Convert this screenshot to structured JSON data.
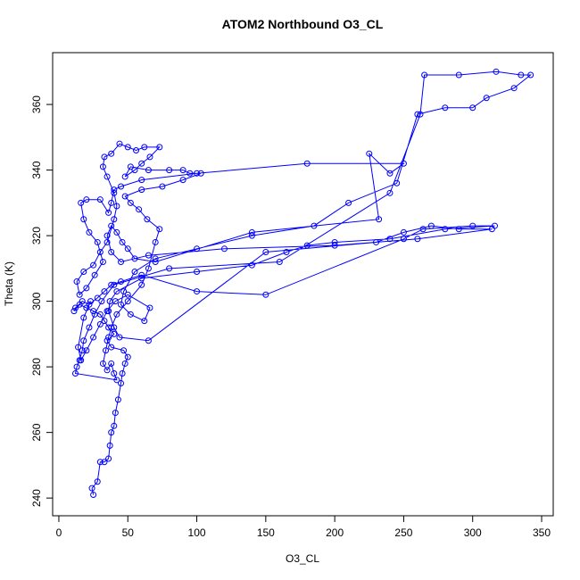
{
  "chart_data": {
    "type": "line",
    "markers": "circle",
    "color": "#0000ff",
    "title": "ATOM2 Northbound O3_CL",
    "x_label": "O3_CL",
    "y_label": "Theta (K)",
    "xlim": [
      -4.5,
      358.4
    ],
    "ylim": [
      234.6,
      375.8
    ],
    "xticks": [
      0,
      50,
      100,
      150,
      200,
      250,
      300,
      350
    ],
    "yticks": [
      240,
      260,
      280,
      300,
      320,
      340,
      360
    ],
    "x": [
      25,
      24,
      28,
      30,
      33,
      36,
      37,
      38,
      40,
      41,
      43,
      45,
      46,
      48,
      50,
      47,
      38,
      35,
      40,
      36,
      33,
      30,
      25,
      20,
      15,
      11,
      12,
      17,
      22,
      28,
      33,
      38,
      45,
      60,
      100,
      150,
      250,
      264,
      300,
      316,
      280,
      240,
      200,
      180,
      165,
      140,
      100,
      60,
      42,
      37,
      36,
      40,
      44,
      65,
      150,
      230,
      250,
      270,
      290,
      314,
      260,
      200,
      120,
      65,
      45,
      38,
      35,
      38,
      42,
      46,
      50,
      55,
      70,
      140,
      232,
      225,
      240,
      250,
      180,
      100,
      60,
      45,
      40,
      38,
      36,
      30,
      20,
      16,
      18,
      22,
      28,
      32,
      26,
      20,
      15,
      13,
      18,
      25,
      30,
      35,
      40,
      42,
      40,
      35,
      32,
      33,
      38,
      44,
      50,
      56,
      62,
      73,
      66,
      60,
      55,
      48,
      52,
      65,
      80,
      90,
      95,
      103,
      90,
      75,
      60,
      48,
      52,
      58,
      64,
      73,
      70,
      65,
      60,
      50,
      42,
      38,
      36,
      34,
      32,
      35,
      38,
      40,
      42,
      12,
      13,
      15,
      17,
      18,
      22,
      26,
      31,
      40,
      80,
      160,
      240,
      262,
      265,
      290,
      317,
      335,
      342,
      330,
      310,
      300,
      280,
      260,
      245,
      210,
      185,
      140,
      100,
      70,
      55,
      47,
      45,
      52,
      62,
      66,
      50,
      41,
      35,
      30,
      25,
      20,
      16,
      14,
      18,
      23
    ],
    "values": [
      241,
      243,
      245,
      251,
      251,
      252,
      256,
      260,
      262,
      266,
      270,
      275,
      278,
      281,
      283,
      285,
      286,
      288,
      290,
      292,
      294,
      296,
      297,
      298,
      299,
      297,
      298,
      300,
      299,
      301,
      303,
      305,
      306,
      308,
      303,
      302,
      319,
      322,
      323,
      323,
      322,
      319,
      318,
      317,
      315,
      311,
      309,
      307,
      303,
      300,
      297,
      292,
      289,
      288,
      315,
      318,
      321,
      323,
      322,
      322,
      319,
      317,
      316,
      314,
      312,
      315,
      320,
      323,
      321,
      318,
      316,
      313,
      312,
      321,
      325,
      345,
      339,
      342,
      342,
      339,
      337,
      335,
      334,
      330,
      327,
      331,
      331,
      330,
      325,
      321,
      318,
      312,
      308,
      304,
      302,
      306,
      309,
      311,
      315,
      318,
      325,
      329,
      333,
      338,
      341,
      344,
      345,
      348,
      347,
      346,
      347,
      347,
      344,
      342,
      340,
      338,
      341,
      340,
      340,
      340,
      339,
      339,
      337,
      335,
      334,
      332,
      330,
      328,
      325,
      322,
      318,
      310,
      305,
      300,
      296,
      292,
      289,
      285,
      281,
      279,
      281,
      278,
      276,
      278,
      280,
      282,
      285,
      288,
      292,
      296,
      300,
      305,
      310,
      312,
      333,
      357,
      369,
      369,
      370,
      369,
      369,
      365,
      362,
      359,
      359,
      357,
      336,
      330,
      323,
      320,
      316,
      313,
      309,
      303,
      299,
      296,
      294,
      298,
      302,
      300,
      297,
      293,
      289,
      285,
      282,
      286,
      295,
      300
    ]
  }
}
